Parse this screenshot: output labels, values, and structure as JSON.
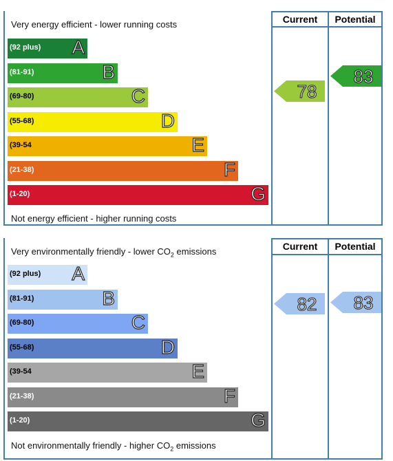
{
  "energy": {
    "header_current": "Current",
    "header_potential": "Potential",
    "top_caption": "Very energy efficient - lower running costs",
    "bottom_caption": "Not energy efficient - higher running costs",
    "bands": [
      {
        "range": "(92 plus)",
        "letter": "A",
        "color": "#1a8035",
        "text_color": "#ffffff"
      },
      {
        "range": "(81-91)",
        "letter": "B",
        "color": "#2ea532",
        "text_color": "#ffffff"
      },
      {
        "range": "(69-80)",
        "letter": "C",
        "color": "#9aca3c",
        "text_color": "#000000"
      },
      {
        "range": "(55-68)",
        "letter": "D",
        "color": "#f5ec00",
        "text_color": "#000000"
      },
      {
        "range": "(39-54",
        "letter": "E",
        "color": "#f0b000",
        "text_color": "#000000"
      },
      {
        "range": "(21-38)",
        "letter": "F",
        "color": "#e3661f",
        "text_color": "#ffffff"
      },
      {
        "range": "(1-20)",
        "letter": "G",
        "color": "#d3162d",
        "text_color": "#ffffff"
      }
    ],
    "current": {
      "value": "78",
      "color": "#9aca3c"
    },
    "potential": {
      "value": "83",
      "color": "#2ea532"
    }
  },
  "environment": {
    "header_current": "Current",
    "header_potential": "Potential",
    "top_caption_pre": "Very environmentally friendly - lower CO",
    "top_caption_sub": "2",
    "top_caption_post": " emissions",
    "bottom_caption_pre": "Not environmentally friendly - higher CO",
    "bottom_caption_sub": "2",
    "bottom_caption_post": " emissions",
    "bands": [
      {
        "range": "(92 plus)",
        "letter": "A",
        "color": "#cfe3f8",
        "text_color": "#000000"
      },
      {
        "range": "(81-91)",
        "letter": "B",
        "color": "#9fc3ee",
        "text_color": "#000000"
      },
      {
        "range": "(69-80)",
        "letter": "C",
        "color": "#7fa6f2",
        "text_color": "#000000"
      },
      {
        "range": "(55-68)",
        "letter": "D",
        "color": "#5b80c7",
        "text_color": "#000000"
      },
      {
        "range": "(39-54",
        "letter": "E",
        "color": "#a6a6a6",
        "text_color": "#000000"
      },
      {
        "range": "(21-38)",
        "letter": "F",
        "color": "#8a8a8a",
        "text_color": "#ffffff"
      },
      {
        "range": "(1-20)",
        "letter": "G",
        "color": "#666666",
        "text_color": "#ffffff"
      }
    ],
    "current": {
      "value": "82",
      "color": "#a3c4ee"
    },
    "potential": {
      "value": "83",
      "color": "#a3c4ee"
    }
  },
  "chart_data": [
    {
      "type": "bar",
      "categories": [
        "A",
        "B",
        "C",
        "D",
        "E",
        "F",
        "G"
      ],
      "ranges": [
        "(92 plus)",
        "(81-91)",
        "(69-80)",
        "(55-68)",
        "(39-54",
        "(21-38)",
        "(1-20)"
      ],
      "current": 78,
      "potential": 83,
      "columns": [
        "Current",
        "Potential"
      ]
    },
    {
      "type": "bar",
      "categories": [
        "A",
        "B",
        "C",
        "D",
        "E",
        "F",
        "G"
      ],
      "ranges": [
        "(92 plus)",
        "(81-91)",
        "(69-80)",
        "(55-68)",
        "(39-54",
        "(21-38)",
        "(1-20)"
      ],
      "current": 82,
      "potential": 83,
      "columns": [
        "Current",
        "Potential"
      ]
    }
  ]
}
